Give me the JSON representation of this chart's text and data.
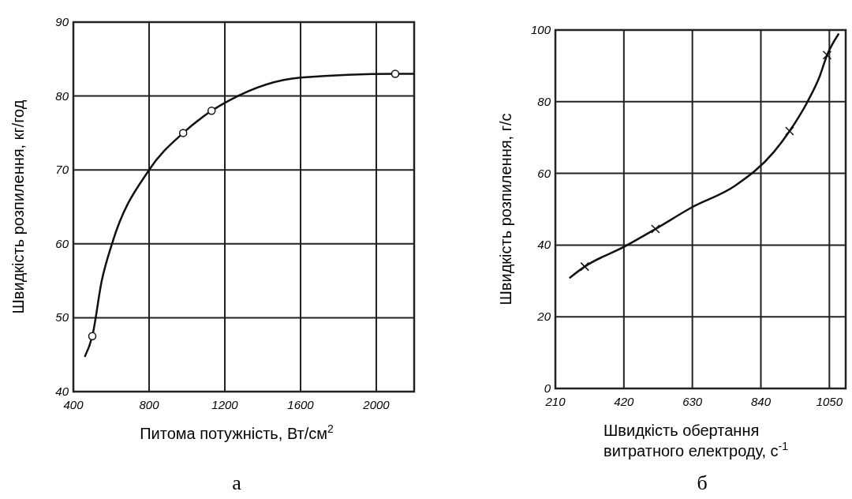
{
  "chart_data": [
    {
      "type": "line",
      "xlabel": "Питома потужність, Вт/см$^{2}$",
      "ylabel": "Швидкість розпилення, кг/год",
      "annotations": [
        "а"
      ],
      "xlim": [
        400,
        2200
      ],
      "ylim": [
        40,
        90
      ],
      "xticks": [
        400,
        800,
        1200,
        1600,
        2000
      ],
      "yticks": [
        40,
        50,
        60,
        70,
        80,
        90
      ],
      "grid": true,
      "series": [
        {
          "type": "line",
          "color": "#111111",
          "marker": "none",
          "x": [
            460,
            500,
            550,
            604,
            800,
            980,
            1130,
            1230,
            1600,
            2100,
            2200
          ],
          "values": [
            44.7,
            47.5,
            55,
            60,
            70,
            75,
            78,
            79.5,
            82.5,
            83,
            83
          ]
        },
        {
          "type": "scatter",
          "color": "#111111",
          "marker": "circle",
          "x": [
            500,
            980,
            1130,
            2100
          ],
          "values": [
            47.5,
            75,
            78,
            83
          ]
        }
      ]
    },
    {
      "type": "line",
      "xlabel": "Швидкість обертання витратного електроду, с$^{-1}$",
      "ylabel": "Швидкість розпилення, г/с",
      "annotations": [
        "б"
      ],
      "xlim": [
        210,
        1100
      ],
      "ylim": [
        0,
        100
      ],
      "xticks": [
        210,
        420,
        630,
        840,
        1050
      ],
      "yticks": [
        0,
        20,
        40,
        60,
        80,
        100
      ],
      "grid": true,
      "series": [
        {
          "type": "line",
          "color": "#111111",
          "marker": "none",
          "x": [
            253,
            300,
            420,
            517,
            630,
            760,
            880,
            928,
            983,
            1020,
            1043,
            1079
          ],
          "values": [
            30.8,
            34,
            39.5,
            44.5,
            50.6,
            56.5,
            66,
            71.8,
            80,
            87,
            93,
            99
          ]
        },
        {
          "type": "scatter",
          "color": "#111111",
          "marker": "cross",
          "x": [
            300,
            517,
            928,
            1043
          ],
          "values": [
            34,
            44.5,
            71.8,
            93
          ]
        }
      ]
    }
  ]
}
